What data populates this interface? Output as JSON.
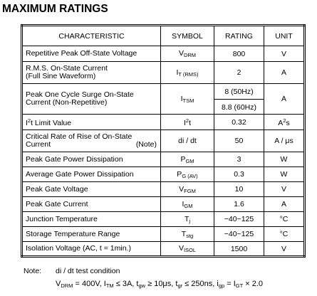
{
  "title": "MAXIMUM RATINGS",
  "table": {
    "columns": [
      "CHARACTERISTIC",
      "SYMBOL",
      "RATING",
      "UNIT"
    ],
    "rows": [
      {
        "characteristic": [
          "Repetitive Peak Off-State Voltage"
        ],
        "symbol": [
          {
            "t": "V"
          },
          {
            "sub": "DRM"
          }
        ],
        "rating": 800,
        "unit": "V"
      },
      {
        "characteristic": [
          "R.M.S. On-State Current",
          "(Full Sine Waveform)"
        ],
        "symbol": [
          {
            "t": "I"
          },
          {
            "sub": "T (RMS)"
          }
        ],
        "rating": 2,
        "unit": "A"
      },
      {
        "characteristic": [
          "Peak One Cycle Surge On-State",
          "Current (Non-Repetitive)"
        ],
        "symbol": [
          {
            "t": "I"
          },
          {
            "sub": "TSM"
          }
        ],
        "rating": [
          "8 (50Hz)",
          "8.8 (60Hz)"
        ],
        "unit": "A"
      },
      {
        "characteristic": [
          [
            {
              "t": "I"
            },
            {
              "sup": "2"
            },
            {
              "t": "t Limit Value"
            }
          ]
        ],
        "symbol": [
          {
            "t": "I"
          },
          {
            "sup": "2"
          },
          {
            "t": "t"
          }
        ],
        "rating": 0.32,
        "unit": [
          {
            "t": "A"
          },
          {
            "sup": "2"
          },
          {
            "t": "s"
          }
        ]
      },
      {
        "characteristic": [
          "Critical Rate of Rise of On-State",
          "Current"
        ],
        "note": "(Note)",
        "symbol": [
          {
            "t": "di / dt"
          }
        ],
        "rating": 50,
        "unit": "A / μs"
      },
      {
        "characteristic": [
          "Peak Gate Power Dissipation"
        ],
        "symbol": [
          {
            "t": "P"
          },
          {
            "sub": "GM"
          }
        ],
        "rating": 3,
        "unit": "W"
      },
      {
        "characteristic": [
          "Average Gate Power Dissipation"
        ],
        "symbol": [
          {
            "t": "P"
          },
          {
            "sub": "G (AV)"
          }
        ],
        "rating": 0.3,
        "unit": "W"
      },
      {
        "characteristic": [
          "Peak Gate Voltage"
        ],
        "symbol": [
          {
            "t": "V"
          },
          {
            "sub": "FGM"
          }
        ],
        "rating": 10,
        "unit": "V"
      },
      {
        "characteristic": [
          "Peak Gate Current"
        ],
        "symbol": [
          {
            "t": "I"
          },
          {
            "sub": "GM"
          }
        ],
        "rating": 1.6,
        "unit": "A"
      },
      {
        "characteristic": [
          "Junction Temperature"
        ],
        "symbol": [
          {
            "t": "T"
          },
          {
            "sub": "j"
          }
        ],
        "rating": "−40~125",
        "unit": "°C"
      },
      {
        "characteristic": [
          "Storage Temperature Range"
        ],
        "symbol": [
          {
            "t": "T"
          },
          {
            "sub": "stg"
          }
        ],
        "rating": "−40~125",
        "unit": "°C"
      },
      {
        "characteristic": [
          "Isolation Voltage (AC, t = 1min.)"
        ],
        "symbol": [
          {
            "t": "V"
          },
          {
            "sub": "ISOL"
          }
        ],
        "rating": 1500,
        "unit": "V"
      }
    ]
  },
  "note": {
    "label": "Note:",
    "line1": "di / dt test condition",
    "line2": [
      {
        "t": "V"
      },
      {
        "sub": "DRM"
      },
      {
        "t": " = 400V, I"
      },
      {
        "sub": "TM"
      },
      {
        "t": " ≤ 3A, t"
      },
      {
        "sub": "gw"
      },
      {
        "t": " ≥ 10μs, t"
      },
      {
        "sub": "gr"
      },
      {
        "t": " ≤ 250ns, i"
      },
      {
        "sub": "gp"
      },
      {
        "t": " = I"
      },
      {
        "sub": "GT"
      },
      {
        "t": " × 2.0"
      }
    ]
  }
}
